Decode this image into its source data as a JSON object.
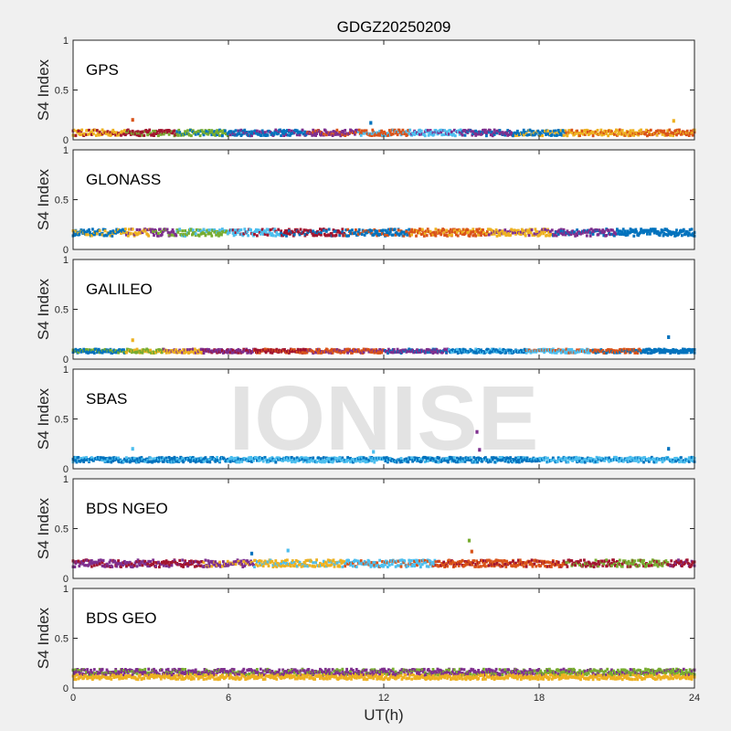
{
  "title": "GDGZ20250209",
  "watermark": "IONISE",
  "colors": {
    "figure_bg": "#f0f0f0",
    "axes_bg": "#ffffff",
    "axis": "#262626",
    "watermark": "#e3e3e3",
    "series": [
      "#0072BD",
      "#D95319",
      "#EDB120",
      "#7E2F8E",
      "#77AC30",
      "#4DBEEE",
      "#A2142F"
    ]
  },
  "chart_data": {
    "type": "scatter",
    "xlabel": "UT(h)",
    "ylabel": "S4 Index",
    "xlim": [
      0,
      24
    ],
    "ylim": [
      0,
      1
    ],
    "xticks": [
      0,
      6,
      12,
      18,
      24
    ],
    "yticks": [
      0,
      0.5,
      1
    ],
    "ytick_labels": [
      "0",
      "0.5",
      "1"
    ],
    "legend": "none",
    "grid": false,
    "panels": [
      {
        "name": "GPS",
        "baseline": 0.07,
        "noise": 0.03,
        "segments": [
          {
            "color": 2,
            "from": 0,
            "to": 2
          },
          {
            "color": 6,
            "from": 2,
            "to": 4
          },
          {
            "color": 4,
            "from": 4,
            "to": 6
          },
          {
            "color": 0,
            "from": 6,
            "to": 9
          },
          {
            "color": 3,
            "from": 9,
            "to": 11
          },
          {
            "color": 1,
            "from": 11,
            "to": 13
          },
          {
            "color": 5,
            "from": 13,
            "to": 15
          },
          {
            "color": 3,
            "from": 15,
            "to": 17
          },
          {
            "color": 0,
            "from": 17,
            "to": 19
          },
          {
            "color": 2,
            "from": 19,
            "to": 22
          },
          {
            "color": 1,
            "from": 22,
            "to": 24
          }
        ],
        "outliers": [
          {
            "x": 2.3,
            "y": 0.2,
            "color": 1
          },
          {
            "x": 11.5,
            "y": 0.17,
            "color": 0
          },
          {
            "x": 23.2,
            "y": 0.19,
            "color": 2
          }
        ]
      },
      {
        "name": "GLONASS",
        "baseline": 0.17,
        "noise": 0.035,
        "segments": [
          {
            "color": 0,
            "from": 0,
            "to": 2
          },
          {
            "color": 2,
            "from": 2,
            "to": 3
          },
          {
            "color": 3,
            "from": 3,
            "to": 4
          },
          {
            "color": 4,
            "from": 4,
            "to": 6
          },
          {
            "color": 5,
            "from": 6,
            "to": 8
          },
          {
            "color": 6,
            "from": 8,
            "to": 10.5
          },
          {
            "color": 0,
            "from": 10.5,
            "to": 13
          },
          {
            "color": 1,
            "from": 13,
            "to": 16
          },
          {
            "color": 2,
            "from": 16,
            "to": 18.5
          },
          {
            "color": 3,
            "from": 18.5,
            "to": 21
          },
          {
            "color": 0,
            "from": 21,
            "to": 24
          }
        ],
        "outliers": []
      },
      {
        "name": "GALILEO",
        "baseline": 0.08,
        "noise": 0.02,
        "segments": [
          {
            "color": 0,
            "from": 0,
            "to": 2
          },
          {
            "color": 4,
            "from": 2,
            "to": 3.5
          },
          {
            "color": 2,
            "from": 3.5,
            "to": 5
          },
          {
            "color": 3,
            "from": 5,
            "to": 7
          },
          {
            "color": 6,
            "from": 7,
            "to": 9
          },
          {
            "color": 1,
            "from": 9,
            "to": 12
          },
          {
            "color": 3,
            "from": 12,
            "to": 14.5
          },
          {
            "color": 0,
            "from": 14.5,
            "to": 17.5
          },
          {
            "color": 5,
            "from": 17.5,
            "to": 20
          },
          {
            "color": 1,
            "from": 20,
            "to": 22
          },
          {
            "color": 0,
            "from": 22,
            "to": 24
          }
        ],
        "outliers": [
          {
            "x": 2.3,
            "y": 0.19,
            "color": 2
          },
          {
            "x": 23.0,
            "y": 0.22,
            "color": 0
          }
        ]
      },
      {
        "name": "SBAS",
        "baseline": 0.09,
        "noise": 0.025,
        "segments": [
          {
            "color": 0,
            "from": 0,
            "to": 6
          },
          {
            "color": 5,
            "from": 6,
            "to": 12
          },
          {
            "color": 0,
            "from": 12,
            "to": 18
          },
          {
            "color": 5,
            "from": 18,
            "to": 24
          }
        ],
        "outliers": [
          {
            "x": 15.6,
            "y": 0.37,
            "color": 3
          },
          {
            "x": 15.7,
            "y": 0.19,
            "color": 3
          },
          {
            "x": 2.3,
            "y": 0.2,
            "color": 5
          },
          {
            "x": 11.6,
            "y": 0.17,
            "color": 5
          },
          {
            "x": 23.0,
            "y": 0.2,
            "color": 0
          }
        ]
      },
      {
        "name": "BDS NGEO",
        "baseline": 0.15,
        "noise": 0.035,
        "segments": [
          {
            "color": 3,
            "from": 0,
            "to": 3
          },
          {
            "color": 6,
            "from": 3,
            "to": 5
          },
          {
            "color": 3,
            "from": 5,
            "to": 7
          },
          {
            "color": 2,
            "from": 7,
            "to": 10.5
          },
          {
            "color": 5,
            "from": 10.5,
            "to": 14
          },
          {
            "color": 1,
            "from": 14,
            "to": 19
          },
          {
            "color": 6,
            "from": 19,
            "to": 21
          },
          {
            "color": 4,
            "from": 21,
            "to": 23
          },
          {
            "color": 6,
            "from": 23,
            "to": 24
          }
        ],
        "outliers": [
          {
            "x": 6.9,
            "y": 0.25,
            "color": 0
          },
          {
            "x": 8.3,
            "y": 0.28,
            "color": 5
          },
          {
            "x": 15.3,
            "y": 0.38,
            "color": 4
          },
          {
            "x": 15.4,
            "y": 0.27,
            "color": 1
          }
        ]
      },
      {
        "name": "BDS GEO",
        "baseline": 0.16,
        "noise": 0.03,
        "segments": [
          {
            "color": 3,
            "from": 0,
            "to": 18
          },
          {
            "color": 4,
            "from": 18,
            "to": 24
          }
        ],
        "secondary": {
          "color": 2,
          "offset": -0.05
        },
        "outliers": []
      }
    ]
  }
}
